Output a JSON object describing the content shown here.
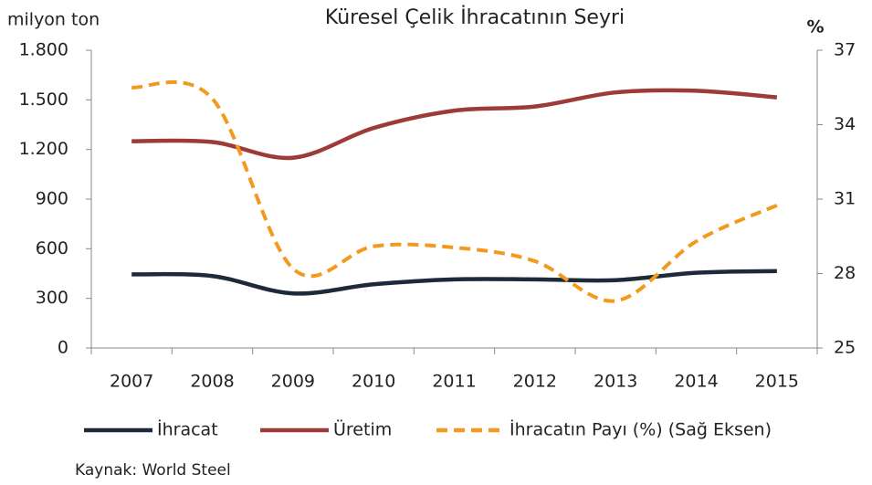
{
  "chart_data": {
    "type": "line",
    "title": "Küresel Çelik İhracatının Seyri",
    "ylabel": "milyon ton",
    "y2label": "%",
    "source": "Kaynak: World Steel",
    "categories": [
      "2007",
      "2008",
      "2009",
      "2010",
      "2011",
      "2012",
      "2013",
      "2014",
      "2015"
    ],
    "series": [
      {
        "name": "İhracat",
        "color": "#1c2a3a",
        "style": "solid",
        "values": [
          445,
          435,
          330,
          385,
          415,
          415,
          410,
          455,
          465
        ]
      },
      {
        "name": "Üretim",
        "color": "#9c3b38",
        "style": "solid",
        "values": [
          1250,
          1245,
          1150,
          1330,
          1435,
          1460,
          1545,
          1555,
          1515
        ]
      },
      {
        "name": "İhracatın Payı (%) (Sağ Eksen)",
        "color": "#f39a1e",
        "style": "dashed",
        "axis": "y2",
        "values": [
          35.5,
          35.05,
          28.2,
          29.1,
          29.05,
          28.5,
          26.9,
          29.3,
          30.75
        ]
      }
    ],
    "ylim": [
      0,
      1800
    ],
    "yticks": [
      {
        "value": 0,
        "label": "0"
      },
      {
        "value": 300,
        "label": "300"
      },
      {
        "value": 600,
        "label": "600"
      },
      {
        "value": 900,
        "label": "900"
      },
      {
        "value": 1200,
        "label": "1.200"
      },
      {
        "value": 1500,
        "label": "1.500"
      },
      {
        "value": 1800,
        "label": "1.800"
      }
    ],
    "y2lim": [
      25,
      37
    ],
    "y2ticks": [
      25,
      28,
      31,
      34,
      37
    ],
    "legend": "bottom",
    "grid": false
  }
}
